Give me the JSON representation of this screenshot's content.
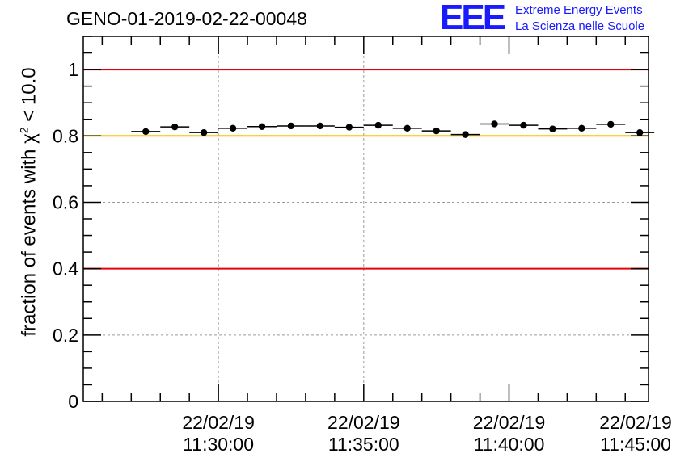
{
  "header": {
    "title": "GENO-01-2019-02-22-00048"
  },
  "logo": {
    "mark": "EEE",
    "line1": "Extreme Energy Events",
    "line2": "La Scienza nelle Scuole"
  },
  "colors": {
    "limit_line": "#e8000b",
    "reference_line": "#f5c000",
    "grid": "#9a9a9a",
    "points": "#000000",
    "logo": "#1a1aff"
  },
  "chart_data": {
    "type": "scatter",
    "title": "GENO-01-2019-02-22-00048",
    "ylabel": {
      "prefix": "fraction of events with ",
      "symbol": "χ",
      "superscript": "2",
      "suffix": " < 10.0"
    },
    "xlabel": "",
    "x_units": "minutes after 11:25:00",
    "xlim": [
      -2.15,
      17.3
    ],
    "ylim": [
      0,
      1.1
    ],
    "y_ticks": [
      0,
      0.2,
      0.4,
      0.6,
      0.8,
      1.0
    ],
    "y_tick_labels": [
      "0",
      "0.2",
      "0.4",
      "0.6",
      "0.8",
      "1"
    ],
    "x_ticks": [
      {
        "x": 2.5,
        "date": "22/02/19",
        "time": "11:30:00"
      },
      {
        "x": 7.5,
        "date": "22/02/19",
        "time": "11:35:00"
      },
      {
        "x": 12.5,
        "date": "22/02/19",
        "time": "11:40:00"
      },
      {
        "x": 17.5,
        "date": "22/02/19",
        "time": "11:45:00"
      }
    ],
    "bin_half_width": 0.5,
    "series": [
      {
        "name": "fraction",
        "x": [
          0,
          1,
          2,
          3,
          4,
          5,
          6,
          7,
          8,
          9,
          10,
          11,
          12,
          13,
          14,
          15,
          16,
          17
        ],
        "y": [
          0.813,
          0.827,
          0.81,
          0.823,
          0.828,
          0.83,
          0.83,
          0.826,
          0.832,
          0.823,
          0.815,
          0.804,
          0.836,
          0.832,
          0.821,
          0.823,
          0.835,
          0.81
        ]
      }
    ],
    "horizontal_lines": [
      {
        "name": "upper-limit",
        "y": 1.0,
        "color": "#e8000b"
      },
      {
        "name": "reference",
        "y": 0.8,
        "color": "#f5c000"
      },
      {
        "name": "lower-limit",
        "y": 0.4,
        "color": "#e8000b"
      }
    ],
    "grid": true
  }
}
